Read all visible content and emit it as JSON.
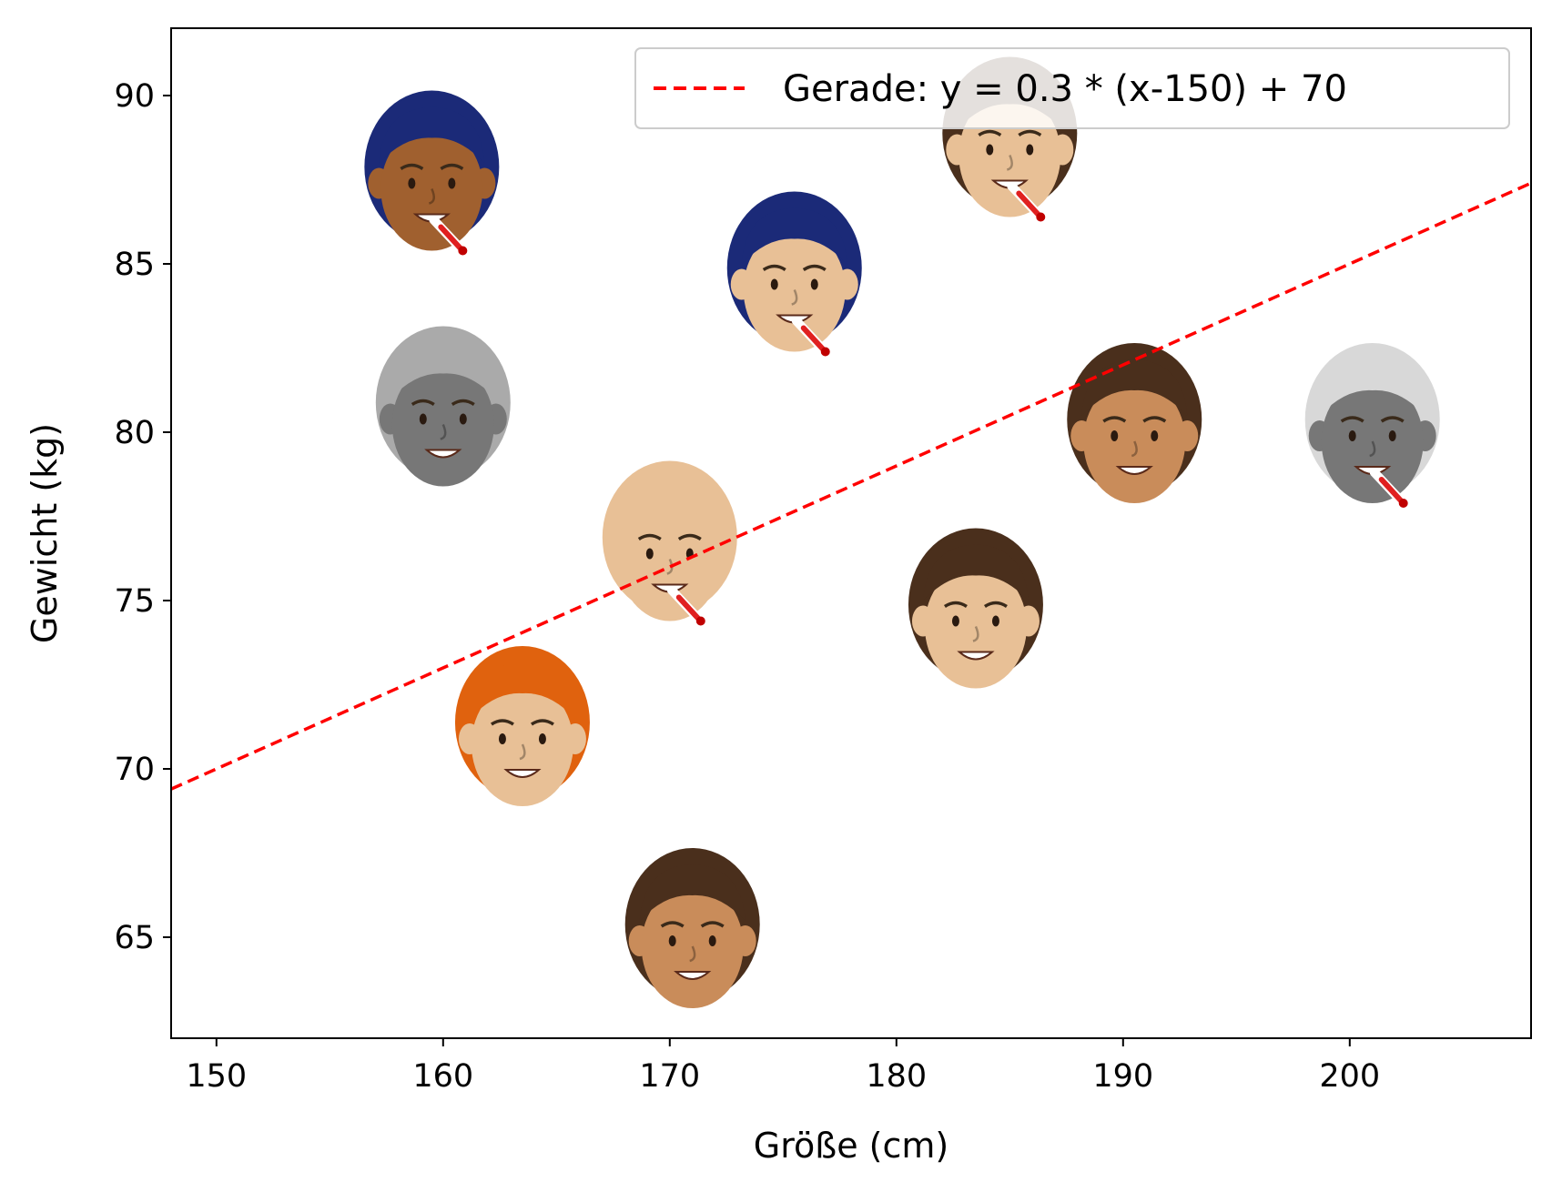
{
  "chart_data": {
    "type": "scatter",
    "title": "",
    "xlabel": "Größe (cm)",
    "ylabel": "Gewicht (kg)",
    "xlim": [
      148,
      208
    ],
    "ylim": [
      62,
      92
    ],
    "xticks": [
      150,
      160,
      170,
      180,
      190,
      200
    ],
    "yticks": [
      65,
      70,
      75,
      80,
      85,
      90
    ],
    "grid": false,
    "legend_position": "top-right",
    "series": [
      {
        "name": "Gerade: y = 0.3 * (x-150) + 70",
        "type": "line",
        "style": "dashed",
        "color": "#ff0000",
        "slope": 0.3,
        "x0": 150,
        "intercept": 70
      }
    ],
    "points": [
      {
        "x": 159.5,
        "y": 87.5,
        "icon": "woman-buns-thermometer-icon",
        "hair": "#1b2a78",
        "skin": "#a0602f",
        "thermometer": true
      },
      {
        "x": 175.5,
        "y": 84.5,
        "icon": "woman-braids-thermometer-icon",
        "hair": "#1b2a78",
        "skin": "#e8c096",
        "thermometer": true
      },
      {
        "x": 185.0,
        "y": 88.5,
        "icon": "man-short-hair-thermometer-icon",
        "hair": "#4a2f1c",
        "skin": "#e8c096",
        "thermometer": true
      },
      {
        "x": 160.0,
        "y": 80.5,
        "icon": "woman-hijab-grey-icon",
        "hair": "#aaaaaa",
        "skin": "#777777",
        "thermometer": false
      },
      {
        "x": 170.0,
        "y": 76.5,
        "icon": "bald-man-glasses-thermometer-icon",
        "hair": "#e8c096",
        "skin": "#e8c096",
        "thermometer": true
      },
      {
        "x": 190.5,
        "y": 80.0,
        "icon": "woman-curly-hair-earrings-icon",
        "hair": "#4a2f1c",
        "skin": "#c98c5a",
        "thermometer": false
      },
      {
        "x": 201.0,
        "y": 80.0,
        "icon": "woman-grey-hair-thermometer-icon",
        "hair": "#d8d8d8",
        "skin": "#777777",
        "thermometer": true
      },
      {
        "x": 183.5,
        "y": 74.5,
        "icon": "man-glasses-smiling-icon",
        "hair": "#4a2f1c",
        "skin": "#e8c096",
        "thermometer": false
      },
      {
        "x": 163.5,
        "y": 71.0,
        "icon": "woman-red-hair-glasses-icon",
        "hair": "#e0620e",
        "skin": "#e8c096",
        "thermometer": false
      },
      {
        "x": 171.0,
        "y": 65.0,
        "icon": "man-braids-beard-icon",
        "hair": "#4a2f1c",
        "skin": "#c98c5a",
        "thermometer": false
      }
    ]
  }
}
